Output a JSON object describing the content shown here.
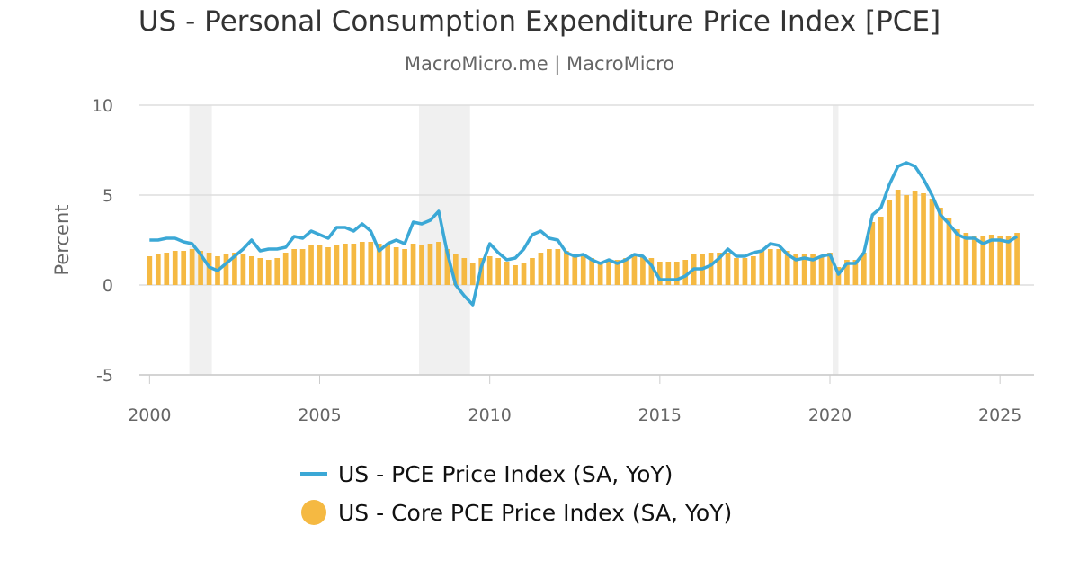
{
  "chart_data": {
    "type": "bar-line",
    "title": "US - Personal Consumption Expenditure Price Index [PCE]",
    "subtitle": "MacroMicro.me | MacroMicro",
    "y_label": "Percent",
    "xlim": [
      1999.7,
      2026
    ],
    "xticks": [
      2000,
      2005,
      2010,
      2015,
      2020,
      2025
    ],
    "ylim": [
      -5,
      10
    ],
    "yticks": [
      -5,
      0,
      5,
      10
    ],
    "grid": true,
    "shaded_ranges": [
      [
        2001.17,
        2001.83
      ],
      [
        2007.92,
        2009.42
      ],
      [
        2020.08,
        2020.25
      ]
    ],
    "shade_color": "#f0f0f0",
    "x": [
      2000,
      2000.25,
      2000.5,
      2000.75,
      2001,
      2001.25,
      2001.5,
      2001.75,
      2002,
      2002.25,
      2002.5,
      2002.75,
      2003,
      2003.25,
      2003.5,
      2003.75,
      2004,
      2004.25,
      2004.5,
      2004.75,
      2005,
      2005.25,
      2005.5,
      2005.75,
      2006,
      2006.25,
      2006.5,
      2006.75,
      2007,
      2007.25,
      2007.5,
      2007.75,
      2008,
      2008.25,
      2008.5,
      2008.75,
      2009,
      2009.25,
      2009.5,
      2009.75,
      2010,
      2010.25,
      2010.5,
      2010.75,
      2011,
      2011.25,
      2011.5,
      2011.75,
      2012,
      2012.25,
      2012.5,
      2012.75,
      2013,
      2013.25,
      2013.5,
      2013.75,
      2014,
      2014.25,
      2014.5,
      2014.75,
      2015,
      2015.25,
      2015.5,
      2015.75,
      2016,
      2016.25,
      2016.5,
      2016.75,
      2017,
      2017.25,
      2017.5,
      2017.75,
      2018,
      2018.25,
      2018.5,
      2018.75,
      2019,
      2019.25,
      2019.5,
      2019.75,
      2020,
      2020.25,
      2020.5,
      2020.75,
      2021,
      2021.25,
      2021.5,
      2021.75,
      2022,
      2022.25,
      2022.5,
      2022.75,
      2023,
      2023.25,
      2023.5,
      2023.75,
      2024,
      2024.25,
      2024.5,
      2024.75,
      2025,
      2025.25,
      2025.5
    ],
    "series": [
      {
        "name": "US - PCE Price Index (SA, YoY)",
        "kind": "line",
        "color": "#3ba8d6",
        "values": [
          2.5,
          2.5,
          2.6,
          2.6,
          2.4,
          2.3,
          1.7,
          1.0,
          0.8,
          1.2,
          1.6,
          2.0,
          2.5,
          1.9,
          2.0,
          2.0,
          2.1,
          2.7,
          2.6,
          3.0,
          2.8,
          2.6,
          3.2,
          3.2,
          3.0,
          3.4,
          3.0,
          1.9,
          2.3,
          2.5,
          2.3,
          3.5,
          3.4,
          3.6,
          4.1,
          1.8,
          0.0,
          -0.6,
          -1.1,
          1.0,
          2.3,
          1.8,
          1.4,
          1.5,
          2.0,
          2.8,
          3.0,
          2.6,
          2.5,
          1.8,
          1.6,
          1.7,
          1.4,
          1.2,
          1.4,
          1.2,
          1.4,
          1.7,
          1.6,
          1.1,
          0.3,
          0.3,
          0.3,
          0.5,
          0.9,
          0.9,
          1.1,
          1.5,
          2.0,
          1.6,
          1.6,
          1.8,
          1.9,
          2.3,
          2.2,
          1.7,
          1.4,
          1.5,
          1.4,
          1.6,
          1.7,
          0.6,
          1.2,
          1.2,
          1.8,
          3.9,
          4.3,
          5.6,
          6.6,
          6.8,
          6.6,
          5.9,
          5.0,
          3.9,
          3.4,
          2.8,
          2.6,
          2.6,
          2.3,
          2.5,
          2.5,
          2.4,
          2.7
        ]
      },
      {
        "name": "US - Core PCE Price Index (SA, YoY)",
        "kind": "bar",
        "color": "#f5b942",
        "values": [
          1.6,
          1.7,
          1.8,
          1.9,
          1.9,
          2.0,
          1.9,
          1.8,
          1.6,
          1.7,
          1.8,
          1.7,
          1.6,
          1.5,
          1.4,
          1.5,
          1.8,
          2.0,
          2.0,
          2.2,
          2.2,
          2.1,
          2.2,
          2.3,
          2.3,
          2.4,
          2.4,
          2.3,
          2.3,
          2.1,
          2.0,
          2.3,
          2.2,
          2.3,
          2.4,
          2.0,
          1.7,
          1.5,
          1.2,
          1.5,
          1.6,
          1.5,
          1.3,
          1.1,
          1.2,
          1.5,
          1.8,
          2.0,
          2.0,
          1.9,
          1.7,
          1.7,
          1.5,
          1.3,
          1.4,
          1.4,
          1.5,
          1.6,
          1.6,
          1.5,
          1.3,
          1.3,
          1.3,
          1.4,
          1.7,
          1.7,
          1.8,
          1.8,
          1.8,
          1.5,
          1.5,
          1.6,
          1.9,
          2.0,
          2.0,
          1.9,
          1.7,
          1.7,
          1.7,
          1.6,
          1.8,
          1.0,
          1.4,
          1.4,
          1.8,
          3.5,
          3.8,
          4.7,
          5.3,
          5.0,
          5.2,
          5.1,
          4.8,
          4.3,
          3.7,
          3.1,
          2.9,
          2.7,
          2.7,
          2.8,
          2.7,
          2.7,
          2.9
        ]
      }
    ]
  }
}
